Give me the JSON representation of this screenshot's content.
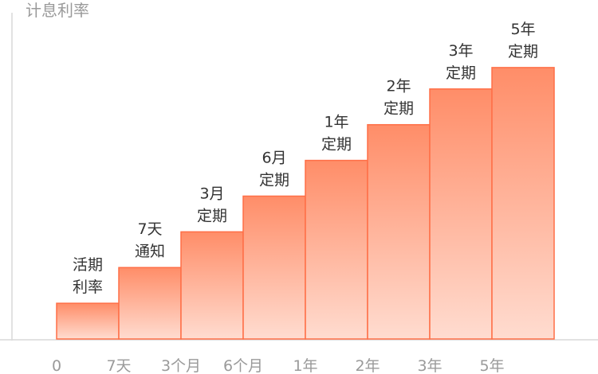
{
  "chart_data": {
    "type": "bar",
    "ylabel": "计息利率",
    "xlabel": "",
    "x_ticks": [
      "0",
      "7天",
      "3个月",
      "6个月",
      "1年",
      "2年",
      "3年",
      "5年"
    ],
    "categories": [
      "活期利率",
      "7天通知",
      "3月定期",
      "6月定期",
      "1年定期",
      "2年定期",
      "3年定期",
      "5年定期"
    ],
    "bar_labels": [
      [
        "活期",
        "利率"
      ],
      [
        "7天",
        "通知"
      ],
      [
        "3月",
        "定期"
      ],
      [
        "6月",
        "定期"
      ],
      [
        "1年",
        "定期"
      ],
      [
        "2年",
        "定期"
      ],
      [
        "3年",
        "定期"
      ],
      [
        "5年",
        "定期"
      ]
    ],
    "values": [
      1,
      2,
      3,
      4,
      5,
      6,
      7,
      7.6
    ],
    "ylim": [
      0,
      8.6
    ],
    "grid": false,
    "legend": "none",
    "colors": {
      "bar_top": "#ff8d68",
      "bar_bottom": "#ffdcd0",
      "bar_border": "#ff6f47",
      "axis": "#d9d9d9",
      "tick_text": "#9a9a9a",
      "label_text": "#333333"
    }
  }
}
